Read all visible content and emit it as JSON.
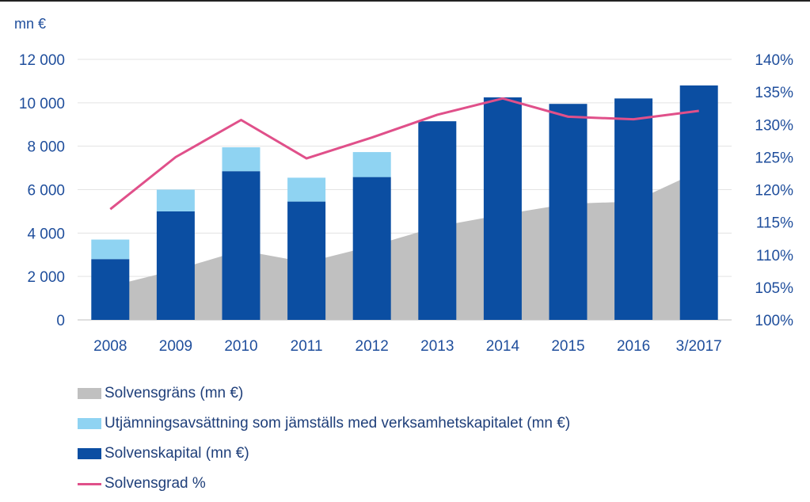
{
  "chart_data": {
    "type": "bar",
    "unit_label": "mn €",
    "categories": [
      "2008",
      "2009",
      "2010",
      "2011",
      "2012",
      "2013",
      "2014",
      "2015",
      "2016",
      "3/2017"
    ],
    "left_axis": {
      "ylim": [
        0,
        12000
      ],
      "ticks": [
        "0",
        "2 000",
        "4 000",
        "6 000",
        "8 000",
        "10 000",
        "12 000"
      ],
      "tick_values": [
        0,
        2000,
        4000,
        6000,
        8000,
        10000,
        12000
      ]
    },
    "right_axis": {
      "ylim": [
        100,
        140
      ],
      "ticks": [
        "100%",
        "105%",
        "110%",
        "115%",
        "120%",
        "125%",
        "130%",
        "135%",
        "140%"
      ],
      "tick_values": [
        100,
        105,
        110,
        115,
        120,
        125,
        130,
        135,
        140
      ]
    },
    "series": [
      {
        "name": "Solvensgräns (mn €)",
        "kind": "area",
        "axis": "left",
        "color": "#c0c0c0",
        "values": [
          1550,
          2300,
          3200,
          2650,
          3400,
          4300,
          4850,
          5350,
          5450,
          6850
        ]
      },
      {
        "name": "Utjämningsavsättning som jämställs med verksamhetskapitalet (mn €)",
        "kind": "stacked-bar",
        "axis": "left",
        "color": "#8fd3f2",
        "values": [
          900,
          1000,
          1100,
          1100,
          1150,
          0,
          0,
          0,
          0,
          0
        ]
      },
      {
        "name": "Solvenskapital (mn €)",
        "kind": "bar",
        "axis": "left",
        "color": "#0b4ea2",
        "values": [
          2800,
          5000,
          6850,
          5450,
          6580,
          9150,
          10250,
          9950,
          10200,
          10800
        ]
      },
      {
        "name": "Solvensgrad %",
        "kind": "line",
        "axis": "right",
        "color": "#e0508a",
        "values": [
          117,
          125,
          130.7,
          124.8,
          128,
          131.5,
          134,
          131.2,
          130.8,
          132.1
        ]
      }
    ],
    "grid": true,
    "legend_position": "bottom-left"
  }
}
